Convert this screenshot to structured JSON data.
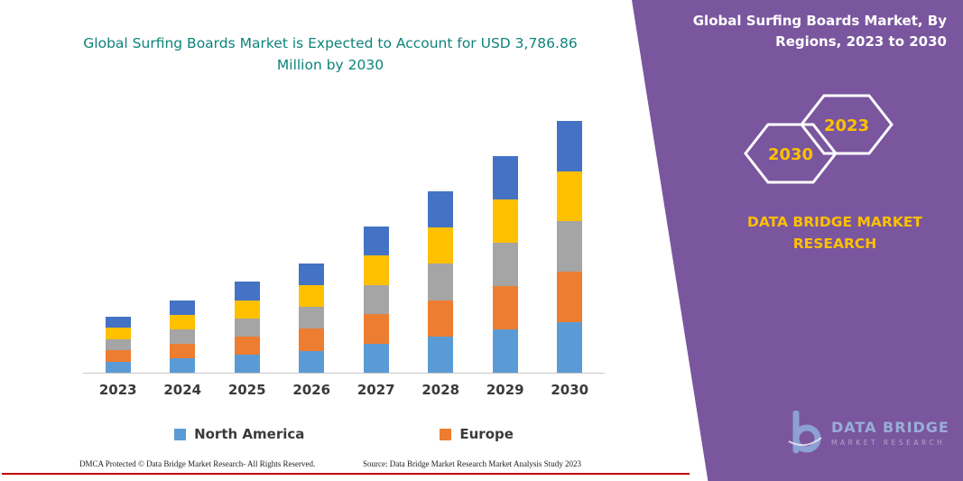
{
  "colors": {
    "teal_title": "#0E837B",
    "panel_purple": "#7A569E",
    "accent_yellow": "#FFC000",
    "red_rule": "#C00000",
    "bar_blue": "#5B9BD5",
    "bar_orange": "#ED7D31",
    "bar_gray": "#A5A5A5",
    "bar_yellow": "#FFC000",
    "bar_dark_blue": "#4472C4"
  },
  "header": {
    "left_title": "Global Surfing Boards Market is Expected to Account for USD 3,786.86 Million by 2030",
    "right_title": "Global Surfing Boards Market, By Regions, 2023 to 2030"
  },
  "side_panel": {
    "badge_back": "2030",
    "badge_front": "2023",
    "brand_text": "DATA BRIDGE MARKET RESEARCH",
    "logo": {
      "title": "DATA BRIDGE",
      "subtitle": "MARKET RESEARCH"
    }
  },
  "chart_data": {
    "type": "bar",
    "stacked": true,
    "title": "Global Surfing Boards Market is Expected to Account for USD 3,786.86 Million by 2030",
    "xlabel": "",
    "ylabel": "",
    "unit": "USD Million",
    "categories": [
      "2023",
      "2024",
      "2025",
      "2026",
      "2027",
      "2028",
      "2029",
      "2030"
    ],
    "series": [
      {
        "name": "North America",
        "color": "#5B9BD5",
        "values": [
          170,
          220,
          275,
          330,
          440,
          545,
          650,
          760
        ]
      },
      {
        "name": "Europe",
        "color": "#ED7D31",
        "values": [
          170,
          218,
          272,
          330,
          439,
          545,
          650,
          757
        ]
      },
      {
        "name": "",
        "color": "#A5A5A5",
        "values": [
          169,
          218,
          272,
          330,
          439,
          545,
          652,
          757
        ]
      },
      {
        "name": "",
        "color": "#FFC000",
        "values": [
          168,
          217,
          271,
          329,
          438,
          544,
          651,
          756
        ]
      },
      {
        "name": "",
        "color": "#4472C4",
        "values": [
          168,
          217,
          272,
          329,
          437,
          545,
          652,
          757
        ]
      }
    ],
    "totals": [
      845,
      1090,
      1362,
      1648,
      2193,
      2724,
      3255,
      3787
    ],
    "legend": [
      {
        "label": "North America",
        "color": "#5B9BD5"
      },
      {
        "label": "Europe",
        "color": "#ED7D31"
      }
    ],
    "ylim": [
      0,
      4000
    ],
    "grid": false,
    "legend_position": "bottom"
  },
  "footer": {
    "dmca": "DMCA Protected © Data Bridge Market Research-  All Rights Reserved.",
    "source": "Source: Data Bridge Market Research  Market Analysis Study 2023"
  }
}
